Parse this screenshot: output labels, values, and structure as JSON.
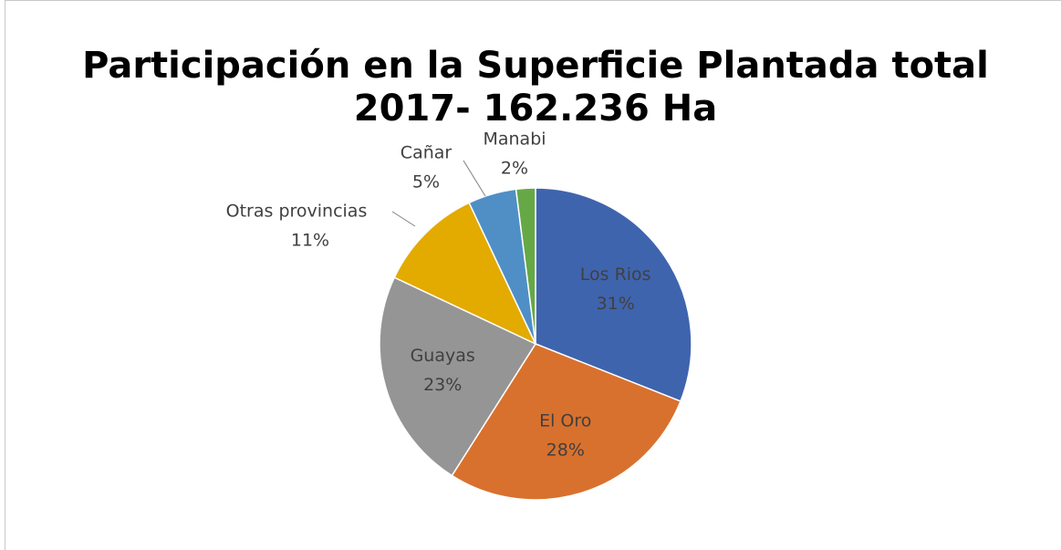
{
  "chart_data": {
    "type": "pie",
    "title": [
      "Participación en la Superficie Plantada total",
      "2017- 162.236 Ha"
    ],
    "categories": [
      "Los Rios",
      "El Oro",
      "Guayas",
      "Otras provincias",
      "Cañar",
      "Manabi"
    ],
    "values": [
      31,
      28,
      23,
      11,
      5,
      2
    ],
    "value_labels": [
      "31%",
      "28%",
      "23%",
      "11%",
      "5%",
      "2%"
    ],
    "colors": [
      "#3f64ae",
      "#d9712e",
      "#959595",
      "#e3aa00",
      "#4f8fc6",
      "#66a846"
    ]
  }
}
